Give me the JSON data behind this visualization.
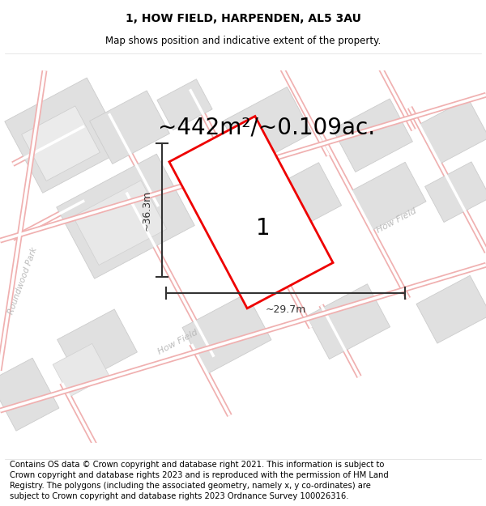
{
  "title": "1, HOW FIELD, HARPENDEN, AL5 3AU",
  "subtitle": "Map shows position and indicative extent of the property.",
  "area_text": "~442m²/~0.109ac.",
  "label_number": "1",
  "dim_height": "~36.3m",
  "dim_width": "~29.7m",
  "footer": "Contains OS data © Crown copyright and database right 2021. This information is subject to Crown copyright and database rights 2023 and is reproduced with the permission of HM Land Registry. The polygons (including the associated geometry, namely x, y co-ordinates) are subject to Crown copyright and database rights 2023 Ordnance Survey 100026316.",
  "bg_color": "#ffffff",
  "map_bg": "#ffffff",
  "road_color": "#f0b0b0",
  "road_fill": "#ffffff",
  "building_color": "#e0e0e0",
  "building_outline": "#cccccc",
  "plot_outline_color": "#ee0000",
  "dim_line_color": "#333333",
  "road_label_color": "#bbbbbb",
  "title_fontsize": 10,
  "subtitle_fontsize": 8.5,
  "area_fontsize": 20,
  "footer_fontsize": 7.2
}
